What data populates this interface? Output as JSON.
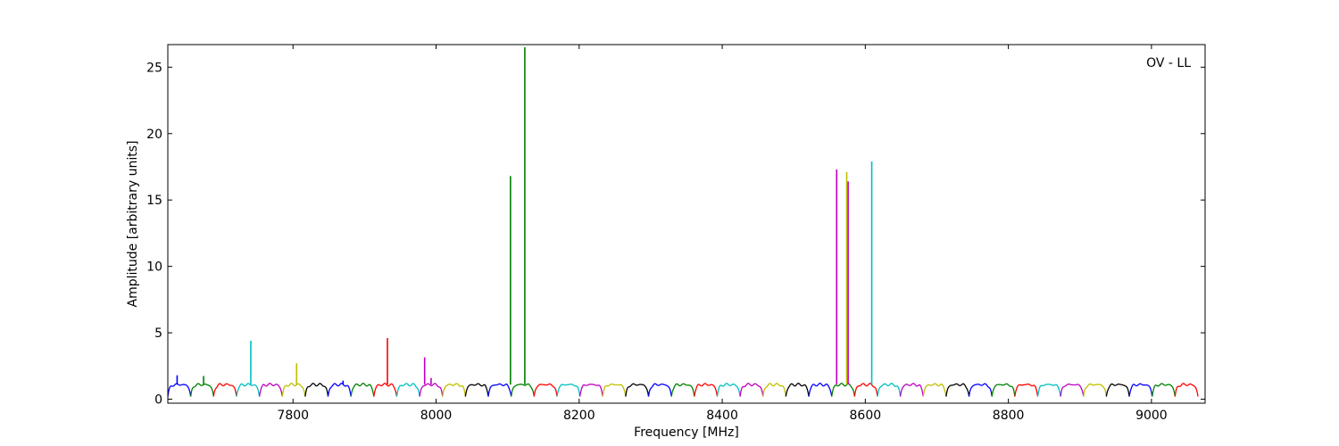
{
  "chart_data": {
    "type": "line",
    "title": "",
    "xlabel": "Frequency [MHz]",
    "ylabel": "Amplitude [arbitrary units]",
    "xlim": [
      7625,
      9075
    ],
    "ylim": [
      -0.3,
      26.7
    ],
    "xticks": [
      7800,
      8000,
      8200,
      8400,
      8600,
      8800,
      9000
    ],
    "yticks": [
      0,
      5,
      10,
      15,
      20,
      25
    ],
    "grid": false,
    "legend": "none",
    "annotation": "OV - LL",
    "channel_width_mhz": 32,
    "channel_start_mhz": 7625,
    "channel_count": 45,
    "baseline_amplitude": 1.1,
    "dip_amplitude": 0.2,
    "color_cycle": [
      "#0000ff",
      "#008000",
      "#ff0000",
      "#00bfbf",
      "#bf00bf",
      "#bfbf00",
      "#000000"
    ],
    "spikes": [
      {
        "x": 7638,
        "y": 1.8,
        "color": "#0000ff"
      },
      {
        "x": 7675,
        "y": 1.75,
        "color": "#008000"
      },
      {
        "x": 7741,
        "y": 4.4,
        "color": "#00bfbf"
      },
      {
        "x": 7805,
        "y": 2.7,
        "color": "#bfbf00"
      },
      {
        "x": 7870,
        "y": 1.4,
        "color": "#0000ff"
      },
      {
        "x": 7932,
        "y": 4.6,
        "color": "#ff0000"
      },
      {
        "x": 7984,
        "y": 3.15,
        "color": "#bf00bf"
      },
      {
        "x": 7993,
        "y": 1.6,
        "color": "#bf00bf"
      },
      {
        "x": 8104,
        "y": 16.8,
        "color": "#008000"
      },
      {
        "x": 8124,
        "y": 26.5,
        "color": "#008000"
      },
      {
        "x": 8560,
        "y": 17.3,
        "color": "#bf00bf"
      },
      {
        "x": 8574,
        "y": 17.1,
        "color": "#bfbf00"
      },
      {
        "x": 8576,
        "y": 16.4,
        "color": "#bf00bf"
      },
      {
        "x": 8609,
        "y": 17.9,
        "color": "#00bfbf"
      }
    ]
  }
}
